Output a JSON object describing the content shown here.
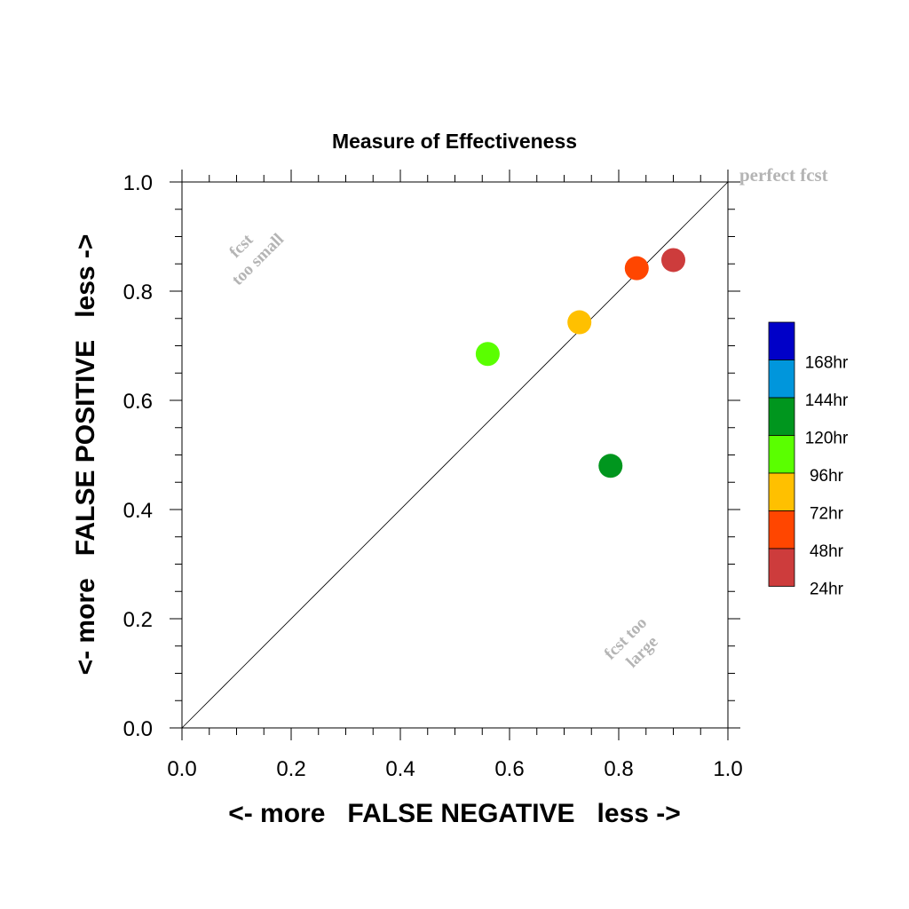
{
  "chart_data": {
    "type": "scatter",
    "title": "Measure of Effectiveness",
    "xlabel": "<- more   FALSE NEGATIVE   less ->",
    "ylabel": "<- more   FALSE POSITIVE   less ->",
    "xlim": [
      0.0,
      1.0
    ],
    "ylim": [
      0.0,
      1.0
    ],
    "xticks": [
      "0.0",
      "0.2",
      "0.4",
      "0.6",
      "0.8",
      "1.0"
    ],
    "yticks": [
      "0.0",
      "0.2",
      "0.4",
      "0.6",
      "0.8",
      "1.0"
    ],
    "grid": false,
    "reference_line": {
      "from": [
        0,
        0
      ],
      "to": [
        1,
        1
      ]
    },
    "annotations": {
      "perfect": "perfect fcst",
      "too_small": [
        "fcst",
        "too small"
      ],
      "too_large": [
        "fcst too",
        "large"
      ]
    },
    "legend": {
      "placement": "right",
      "entries": [
        {
          "label": "168hr",
          "color": "#0000c8"
        },
        {
          "label": "144hr",
          "color": "#0096dc"
        },
        {
          "label": "120hr",
          "color": "#00961e"
        },
        {
          "label": "96hr",
          "color": "#5aff00"
        },
        {
          "label": "72hr",
          "color": "#ffc000"
        },
        {
          "label": "48hr",
          "color": "#ff4600"
        },
        {
          "label": "24hr",
          "color": "#cd3c3c"
        }
      ]
    },
    "series": [
      {
        "label": "120hr",
        "x": 0.785,
        "y": 0.48,
        "color": "#00961e"
      },
      {
        "label": "96hr",
        "x": 0.56,
        "y": 0.685,
        "color": "#5aff00"
      },
      {
        "label": "72hr",
        "x": 0.728,
        "y": 0.743,
        "color": "#ffc000"
      },
      {
        "label": "48hr",
        "x": 0.833,
        "y": 0.842,
        "color": "#ff4600"
      },
      {
        "label": "24hr",
        "x": 0.9,
        "y": 0.857,
        "color": "#cd3c3c"
      }
    ]
  }
}
